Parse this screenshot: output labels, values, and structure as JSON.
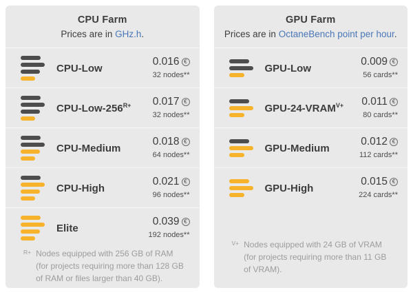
{
  "colors": {
    "page_bg": "#ffffff",
    "panel_bg": "#e9e9e9",
    "separator": "#f6f6f6",
    "text_dark": "#3c3c3b",
    "muted": "#9c9c9c",
    "link_blue": "#4a77b7",
    "bar_dark": "#4d4d4d",
    "bar_yellow": "#f7b32b"
  },
  "bar_widths": {
    "four": [
      29,
      35,
      28,
      21
    ],
    "three": [
      29,
      35,
      22
    ]
  },
  "price_icon": {
    "name": "euro-coin-icon",
    "symbol": "€"
  },
  "panels": [
    {
      "title": "CPU Farm",
      "subtitle_prefix": "Prices are in ",
      "subtitle_link": "GHz.h",
      "subtitle_suffix": ".",
      "rows": [
        {
          "name": "CPU-Low",
          "sup": "",
          "price": "0.016",
          "sub": "32 nodes**",
          "bars_total": 4,
          "bars_active": 1
        },
        {
          "name": "CPU-Low-256",
          "sup": "R+",
          "price": "0.017",
          "sub": "32 nodes**",
          "bars_total": 4,
          "bars_active": 1
        },
        {
          "name": "CPU-Medium",
          "sup": "",
          "price": "0.018",
          "sub": "64 nodes**",
          "bars_total": 4,
          "bars_active": 2
        },
        {
          "name": "CPU-High",
          "sup": "",
          "price": "0.021",
          "sub": "96 nodes**",
          "bars_total": 4,
          "bars_active": 3
        },
        {
          "name": "Elite",
          "sup": "",
          "price": "0.039",
          "sub": "192 nodes**",
          "bars_total": 4,
          "bars_active": 4
        }
      ],
      "footnote_sup": "R+",
      "footnote_text": "Nodes equipped with 256 GB of RAM (for projects requiring more than 128 GB of RAM or files larger than 40 GB)."
    },
    {
      "title": "GPU Farm",
      "subtitle_prefix": "Prices are in ",
      "subtitle_link": "OctaneBench point per hour",
      "subtitle_suffix": ".",
      "rows": [
        {
          "name": "GPU-Low",
          "sup": "",
          "price": "0.009",
          "sub": "56 cards**",
          "bars_total": 3,
          "bars_active": 1
        },
        {
          "name": "GPU-24-VRAM",
          "sup": "V+",
          "price": "0.011",
          "sub": "80 cards**",
          "bars_total": 3,
          "bars_active": 2
        },
        {
          "name": "GPU-Medium",
          "sup": "",
          "price": "0.012",
          "sub": "112 cards**",
          "bars_total": 3,
          "bars_active": 2
        },
        {
          "name": "GPU-High",
          "sup": "",
          "price": "0.015",
          "sub": "224 cards**",
          "bars_total": 3,
          "bars_active": 3
        }
      ],
      "footnote_sup": "V+",
      "footnote_text": "Nodes equipped with 24 GB of VRAM (for projects requiring more than 11 GB of VRAM)."
    }
  ]
}
